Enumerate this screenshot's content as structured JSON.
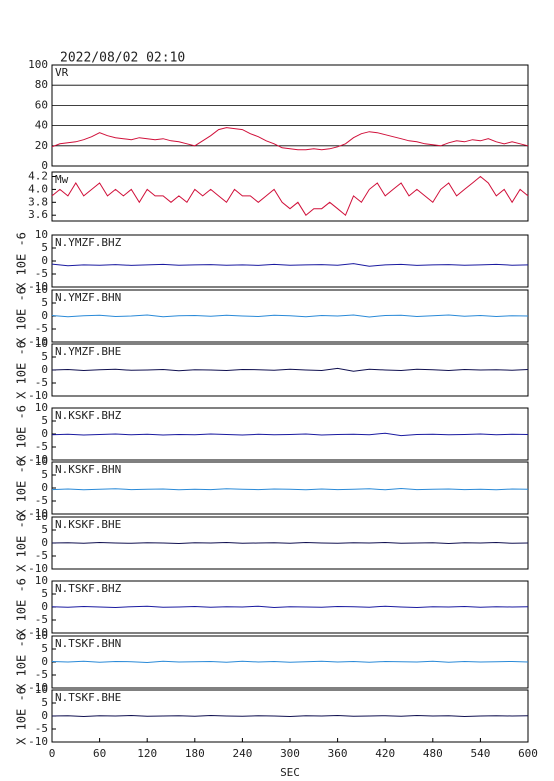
{
  "chart_data": [
    {
      "type": "line",
      "title": "2022/08/02 02:10",
      "xlim": [
        0,
        600
      ],
      "ylim": [
        0,
        100
      ],
      "yticks": [
        0,
        20,
        40,
        60,
        80,
        100
      ],
      "grid": true,
      "x": [
        0,
        10,
        20,
        30,
        40,
        50,
        60,
        70,
        80,
        90,
        100,
        110,
        120,
        130,
        140,
        150,
        160,
        170,
        180,
        190,
        200,
        210,
        220,
        230,
        240,
        250,
        260,
        270,
        280,
        290,
        300,
        310,
        320,
        330,
        340,
        350,
        360,
        370,
        380,
        390,
        400,
        410,
        420,
        430,
        440,
        450,
        460,
        470,
        480,
        490,
        500,
        510,
        520,
        530,
        540,
        550,
        560,
        570,
        580,
        590,
        600
      ],
      "series": [
        {
          "name": "VR",
          "color": "#d0103a",
          "values": [
            19,
            22,
            23,
            24,
            26,
            29,
            33,
            30,
            28,
            27,
            26,
            28,
            27,
            26,
            27,
            25,
            24,
            22,
            20,
            25,
            30,
            36,
            38,
            37,
            36,
            32,
            29,
            25,
            22,
            18,
            17,
            16,
            16,
            17,
            16,
            17,
            19,
            22,
            28,
            32,
            34,
            33,
            31,
            29,
            27,
            25,
            24,
            22,
            21,
            20,
            23,
            25,
            24,
            26,
            25,
            27,
            24,
            22,
            24,
            22,
            20
          ]
        }
      ]
    },
    {
      "type": "line",
      "xlim": [
        0,
        600
      ],
      "ylim": [
        3.51,
        4.27
      ],
      "yticks": [
        3.6,
        3.8,
        {
          "value": 4,
          "label": "4.0"
        },
        4.2
      ],
      "x": [
        0,
        10,
        20,
        30,
        40,
        50,
        60,
        70,
        80,
        90,
        100,
        110,
        120,
        130,
        140,
        150,
        160,
        170,
        180,
        190,
        200,
        210,
        220,
        230,
        240,
        250,
        260,
        270,
        280,
        290,
        300,
        310,
        320,
        330,
        340,
        350,
        360,
        370,
        380,
        390,
        400,
        410,
        420,
        430,
        440,
        450,
        460,
        470,
        480,
        490,
        500,
        510,
        520,
        530,
        540,
        550,
        560,
        570,
        580,
        590,
        600
      ],
      "series": [
        {
          "name": "Mw",
          "color": "#d0103a",
          "values": [
            3.9,
            4.0,
            3.9,
            4.1,
            3.9,
            4.0,
            4.1,
            3.9,
            4.0,
            3.9,
            4.0,
            3.8,
            4.0,
            3.9,
            3.9,
            3.8,
            3.9,
            3.8,
            4.0,
            3.9,
            4.0,
            3.9,
            3.8,
            4.0,
            3.9,
            3.9,
            3.8,
            3.9,
            4.0,
            3.8,
            3.7,
            3.8,
            3.6,
            3.7,
            3.7,
            3.8,
            3.7,
            3.6,
            3.9,
            3.8,
            4.0,
            4.1,
            3.9,
            4.0,
            4.1,
            3.9,
            4.0,
            3.9,
            3.8,
            4.0,
            4.1,
            3.9,
            4.0,
            4.1,
            4.2,
            4.1,
            3.9,
            4.0,
            3.8,
            4.0,
            3.9
          ]
        }
      ]
    },
    {
      "type": "line",
      "ylabel": "X 10E -6",
      "xlim": [
        0,
        600
      ],
      "ylim": [
        -10,
        10
      ],
      "yticks": [
        -10,
        -5,
        0,
        5,
        10
      ],
      "x": [
        0,
        20,
        40,
        60,
        80,
        100,
        120,
        140,
        160,
        180,
        200,
        220,
        240,
        260,
        280,
        300,
        320,
        340,
        360,
        380,
        400,
        420,
        440,
        460,
        480,
        500,
        520,
        540,
        560,
        580,
        600
      ],
      "series": [
        {
          "name": "N.YMZF.BHZ",
          "color": "#1a1aa0",
          "values": [
            -1.2,
            -1.8,
            -1.5,
            -1.6,
            -1.4,
            -1.7,
            -1.5,
            -1.3,
            -1.6,
            -1.5,
            -1.4,
            -1.6,
            -1.5,
            -1.7,
            -1.3,
            -1.6,
            -1.5,
            -1.4,
            -1.6,
            -1.0,
            -2.0,
            -1.5,
            -1.3,
            -1.7,
            -1.5,
            -1.4,
            -1.6,
            -1.5,
            -1.3,
            -1.6,
            -1.5
          ]
        }
      ]
    },
    {
      "type": "line",
      "ylabel": "X 10E -6",
      "xlim": [
        0,
        600
      ],
      "ylim": [
        -10,
        10
      ],
      "yticks": [
        -10,
        -5,
        0,
        5,
        10
      ],
      "x": [
        0,
        20,
        40,
        60,
        80,
        100,
        120,
        140,
        160,
        180,
        200,
        220,
        240,
        260,
        280,
        300,
        320,
        340,
        360,
        380,
        400,
        420,
        440,
        460,
        480,
        500,
        520,
        540,
        560,
        580,
        600
      ],
      "series": [
        {
          "name": "N.YMZF.BHN",
          "color": "#2a8ad8",
          "values": [
            0.2,
            -0.3,
            0.1,
            0.3,
            -0.2,
            0.0,
            0.4,
            -0.3,
            0.1,
            0.2,
            -0.1,
            0.3,
            0.0,
            -0.2,
            0.3,
            0.1,
            -0.3,
            0.2,
            0.0,
            0.4,
            -0.4,
            0.2,
            0.3,
            -0.2,
            0.1,
            0.4,
            -0.1,
            0.2,
            -0.2,
            0.1,
            0.0
          ]
        }
      ]
    },
    {
      "type": "line",
      "ylabel": "X 10E -6",
      "xlim": [
        0,
        600
      ],
      "ylim": [
        -10,
        10
      ],
      "yticks": [
        -10,
        -5,
        0,
        5,
        10
      ],
      "x": [
        0,
        20,
        40,
        60,
        80,
        100,
        120,
        140,
        160,
        180,
        200,
        220,
        240,
        260,
        280,
        300,
        320,
        340,
        360,
        380,
        400,
        420,
        440,
        460,
        480,
        500,
        520,
        540,
        560,
        580,
        600
      ],
      "series": [
        {
          "name": "N.YMZF.BHE",
          "color": "#101050",
          "values": [
            0.0,
            0.2,
            -0.2,
            0.1,
            0.3,
            -0.1,
            0.0,
            0.2,
            -0.3,
            0.1,
            0.0,
            -0.2,
            0.2,
            0.1,
            -0.1,
            0.3,
            0.0,
            -0.2,
            0.6,
            -0.5,
            0.3,
            0.0,
            -0.2,
            0.3,
            0.1,
            -0.2,
            0.2,
            0.0,
            0.1,
            -0.1,
            0.2
          ]
        }
      ]
    },
    {
      "type": "line",
      "ylabel": "X 10E -6",
      "xlim": [
        0,
        600
      ],
      "ylim": [
        -10,
        10
      ],
      "yticks": [
        -10,
        -5,
        0,
        5,
        10
      ],
      "x": [
        0,
        20,
        40,
        60,
        80,
        100,
        120,
        140,
        160,
        180,
        200,
        220,
        240,
        260,
        280,
        300,
        320,
        340,
        360,
        380,
        400,
        420,
        440,
        460,
        480,
        500,
        520,
        540,
        560,
        580,
        600
      ],
      "series": [
        {
          "name": "N.KSKF.BHZ",
          "color": "#1a1aa0",
          "values": [
            -0.3,
            -0.1,
            -0.4,
            -0.2,
            0.0,
            -0.3,
            -0.1,
            -0.4,
            -0.2,
            -0.3,
            0.0,
            -0.2,
            -0.4,
            -0.1,
            -0.3,
            -0.2,
            0.0,
            -0.4,
            -0.2,
            -0.1,
            -0.3,
            0.3,
            -0.6,
            -0.2,
            -0.1,
            -0.3,
            -0.2,
            0.0,
            -0.3,
            -0.1,
            -0.2
          ]
        }
      ]
    },
    {
      "type": "line",
      "ylabel": "X 10E -6",
      "xlim": [
        0,
        600
      ],
      "ylim": [
        -10,
        10
      ],
      "yticks": [
        -10,
        -5,
        0,
        5,
        10
      ],
      "x": [
        0,
        20,
        40,
        60,
        80,
        100,
        120,
        140,
        160,
        180,
        200,
        220,
        240,
        260,
        280,
        300,
        320,
        340,
        360,
        380,
        400,
        420,
        440,
        460,
        480,
        500,
        520,
        540,
        560,
        580,
        600
      ],
      "series": [
        {
          "name": "N.KSKF.BHN",
          "color": "#2a8ad8",
          "values": [
            -0.6,
            -0.4,
            -0.7,
            -0.5,
            -0.3,
            -0.6,
            -0.5,
            -0.4,
            -0.7,
            -0.5,
            -0.6,
            -0.3,
            -0.5,
            -0.6,
            -0.4,
            -0.5,
            -0.7,
            -0.4,
            -0.6,
            -0.5,
            -0.3,
            -0.7,
            -0.2,
            -0.6,
            -0.5,
            -0.4,
            -0.6,
            -0.5,
            -0.7,
            -0.4,
            -0.5
          ]
        }
      ]
    },
    {
      "type": "line",
      "ylabel": "X 10E -6",
      "xlim": [
        0,
        600
      ],
      "ylim": [
        -10,
        10
      ],
      "yticks": [
        -10,
        -5,
        0,
        5,
        10
      ],
      "x": [
        0,
        20,
        40,
        60,
        80,
        100,
        120,
        140,
        160,
        180,
        200,
        220,
        240,
        260,
        280,
        300,
        320,
        340,
        360,
        380,
        400,
        420,
        440,
        460,
        480,
        500,
        520,
        540,
        560,
        580,
        600
      ],
      "series": [
        {
          "name": "N.KSKF.BHE",
          "color": "#101050",
          "values": [
            0.0,
            0.1,
            -0.1,
            0.2,
            0.0,
            -0.1,
            0.1,
            0.0,
            -0.2,
            0.1,
            0.0,
            0.2,
            -0.1,
            0.0,
            0.1,
            -0.1,
            0.2,
            0.0,
            -0.1,
            0.1,
            0.0,
            0.2,
            -0.1,
            0.0,
            0.1,
            -0.2,
            0.1,
            0.0,
            0.2,
            -0.1,
            0.0
          ]
        }
      ]
    },
    {
      "type": "line",
      "ylabel": "X 10E -6",
      "xlim": [
        0,
        600
      ],
      "ylim": [
        -10,
        10
      ],
      "yticks": [
        -10,
        -5,
        0,
        5,
        10
      ],
      "x": [
        0,
        20,
        40,
        60,
        80,
        100,
        120,
        140,
        160,
        180,
        200,
        220,
        240,
        260,
        280,
        300,
        320,
        340,
        360,
        380,
        400,
        420,
        440,
        460,
        480,
        500,
        520,
        540,
        560,
        580,
        600
      ],
      "series": [
        {
          "name": "N.TSKF.BHZ",
          "color": "#1a1aa0",
          "values": [
            0.1,
            -0.1,
            0.2,
            0.0,
            -0.2,
            0.1,
            0.3,
            -0.1,
            0.0,
            0.2,
            -0.1,
            0.1,
            0.0,
            0.3,
            -0.2,
            0.1,
            0.0,
            -0.1,
            0.2,
            0.1,
            -0.1,
            0.3,
            0.0,
            -0.2,
            0.1,
            0.0,
            0.2,
            -0.1,
            0.1,
            0.0,
            0.1
          ]
        }
      ]
    },
    {
      "type": "line",
      "ylabel": "X 10E -6",
      "xlim": [
        0,
        600
      ],
      "ylim": [
        -10,
        10
      ],
      "yticks": [
        -10,
        -5,
        0,
        5,
        10
      ],
      "x": [
        0,
        20,
        40,
        60,
        80,
        100,
        120,
        140,
        160,
        180,
        200,
        220,
        240,
        260,
        280,
        300,
        320,
        340,
        360,
        380,
        400,
        420,
        440,
        460,
        480,
        500,
        520,
        540,
        560,
        580,
        600
      ],
      "series": [
        {
          "name": "N.TSKF.BHN",
          "color": "#2a8ad8",
          "values": [
            0.2,
            0.0,
            0.3,
            -0.1,
            0.2,
            0.1,
            -0.2,
            0.3,
            0.0,
            0.1,
            0.2,
            -0.1,
            0.3,
            0.0,
            0.2,
            -0.1,
            0.1,
            0.3,
            0.0,
            0.2,
            -0.1,
            0.2,
            0.1,
            0.0,
            0.3,
            -0.1,
            0.2,
            0.0,
            0.1,
            0.2,
            0.0
          ]
        }
      ]
    },
    {
      "type": "line",
      "ylabel": "X 10E -6",
      "xlabel": "SEC",
      "xlim": [
        0,
        600
      ],
      "xticks": [
        0,
        60,
        120,
        180,
        240,
        300,
        360,
        420,
        480,
        540,
        600
      ],
      "ylim": [
        -10,
        10
      ],
      "yticks": [
        -10,
        -5,
        0,
        5,
        10
      ],
      "x": [
        0,
        20,
        40,
        60,
        80,
        100,
        120,
        140,
        160,
        180,
        200,
        220,
        240,
        260,
        280,
        300,
        320,
        340,
        360,
        380,
        400,
        420,
        440,
        460,
        480,
        500,
        520,
        540,
        560,
        580,
        600
      ],
      "series": [
        {
          "name": "N.TSKF.BHE",
          "color": "#101050",
          "values": [
            0.0,
            0.1,
            -0.2,
            0.1,
            0.0,
            0.2,
            -0.1,
            0.0,
            0.1,
            -0.1,
            0.2,
            0.0,
            -0.1,
            0.1,
            0.0,
            -0.2,
            0.1,
            0.0,
            0.2,
            -0.1,
            0.0,
            0.1,
            -0.1,
            0.2,
            0.0,
            0.1,
            -0.2,
            0.0,
            0.1,
            0.0,
            0.1
          ]
        }
      ]
    }
  ]
}
